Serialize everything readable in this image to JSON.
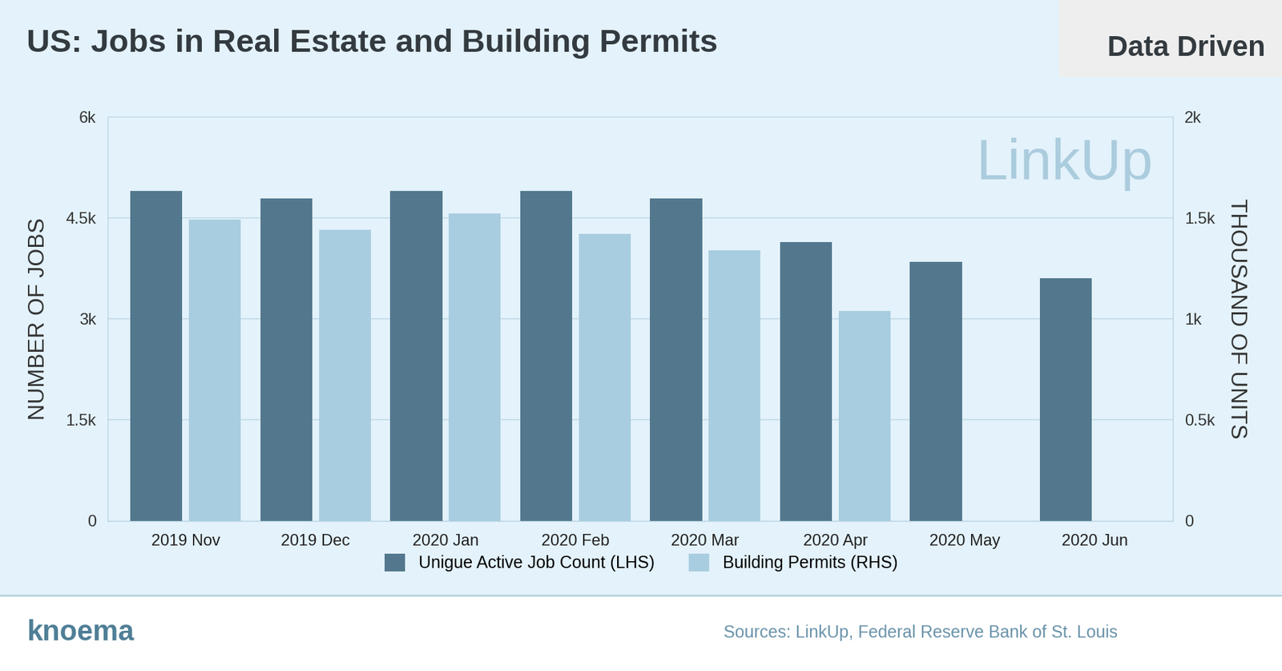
{
  "chart_data": {
    "type": "bar",
    "title": "US: Jobs in Real Estate and Building Permits",
    "badge": "Data Driven",
    "watermark": "LinkUp",
    "brand": "knoema",
    "source": "Sources: LinkUp, Federal Reserve Bank of St. Louis",
    "y_label": "NUMBER OF JOBS",
    "y2_label": "THOUSAND OF UNITS",
    "categories": [
      "2019 Nov",
      "2019 Dec",
      "2020 Jan",
      "2020 Feb",
      "2020 Mar",
      "2020 Apr",
      "2020 May",
      "2020 Jun"
    ],
    "series": [
      {
        "name": "Unigue Active Job Count (LHS)",
        "color": "#53788e",
        "axis": "y",
        "values": [
          4900,
          4790,
          4900,
          4900,
          4790,
          4140,
          3840,
          3600
        ]
      },
      {
        "name": "Building Permits (RHS)",
        "color": "#a9cde0",
        "axis": "y2",
        "values": [
          1490,
          1440,
          1520,
          1420,
          1340,
          1040,
          null,
          null
        ]
      }
    ],
    "ylim": [
      0,
      6000
    ],
    "yticks": [
      0,
      {
        "value": 1500,
        "label": "1.5k"
      },
      {
        "value": 3000,
        "label": "3k"
      },
      {
        "value": 4500,
        "label": "4.5k"
      },
      {
        "value": 6000,
        "label": "6k"
      }
    ],
    "y2lim": [
      0,
      2000
    ],
    "y2ticks": [
      0,
      {
        "value": 500,
        "label": "0.5k"
      },
      {
        "value": 1000,
        "label": "1k"
      },
      {
        "value": 1500,
        "label": "1.5k"
      },
      {
        "value": 2000,
        "label": "2k"
      }
    ],
    "grid": true,
    "legend": "lower center"
  }
}
